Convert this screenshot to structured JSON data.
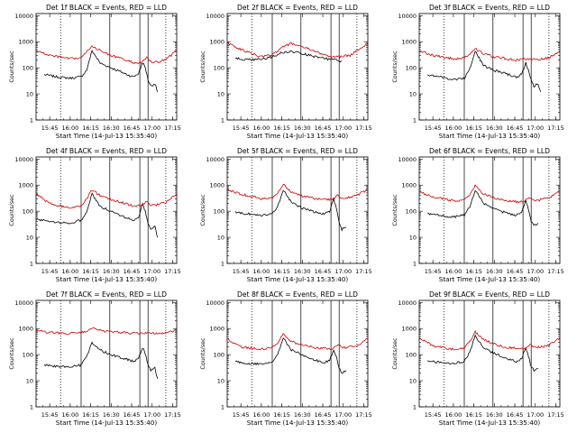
{
  "chart_data": [
    {
      "type": "line",
      "title": "Det 1f BLACK = Events, RED = LLD",
      "xlabel": "Start Time (14-Jul-13 15:35:40)",
      "ylabel": "Counts/sec",
      "yscale": "log",
      "ylim": [
        1,
        12000
      ],
      "xlim": [
        "15:35",
        "17:18"
      ],
      "x_ticks": [
        "15:45",
        "16:00",
        "16:15",
        "16:30",
        "16:45",
        "17:00",
        "17:15"
      ],
      "y_ticks": [
        "1",
        "10",
        "100",
        "1000",
        "10000"
      ],
      "dotted_markers": [
        "15:53",
        "17:10"
      ],
      "solid_markers": [
        "16:08",
        "16:29",
        "16:51",
        "16:57"
      ],
      "series": [
        {
          "color": "#000000",
          "x": [
            "15:41",
            "15:50",
            "16:00",
            "16:08",
            "16:12",
            "16:16",
            "16:22",
            "16:30",
            "16:40",
            "16:46",
            "16:50",
            "16:53",
            "16:55",
            "16:57",
            "16:59",
            "17:02",
            "17:04"
          ],
          "y": [
            55,
            45,
            40,
            45,
            80,
            450,
            150,
            100,
            60,
            45,
            60,
            160,
            100,
            35,
            20,
            25,
            12
          ]
        },
        {
          "color": "#cc0000",
          "x": [
            "15:35",
            "15:45",
            "16:00",
            "16:08",
            "16:12",
            "16:16",
            "16:22",
            "16:30",
            "16:40",
            "16:46",
            "16:52",
            "16:56",
            "17:00",
            "17:10",
            "17:18"
          ],
          "y": [
            450,
            300,
            220,
            240,
            400,
            700,
            450,
            300,
            200,
            160,
            150,
            250,
            150,
            200,
            450
          ]
        }
      ]
    },
    {
      "type": "line",
      "title": "Det 2f BLACK = Events, RED = LLD",
      "xlabel": "Start Time (14-Jul-13 15:35:40)",
      "ylabel": "Counts/sec",
      "yscale": "log",
      "ylim": [
        1,
        12000
      ],
      "xlim": [
        "15:35",
        "17:18"
      ],
      "x_ticks": [
        "15:45",
        "16:00",
        "16:15",
        "16:30",
        "16:45",
        "17:00",
        "17:15"
      ],
      "y_ticks": [
        "1",
        "10",
        "100",
        "1000",
        "10000"
      ],
      "dotted_markers": [
        "15:53",
        "17:10"
      ],
      "solid_markers": [
        "16:08",
        "16:29",
        "16:51",
        "16:57"
      ],
      "series": [
        {
          "color": "#000000",
          "x": [
            "15:41",
            "15:50",
            "16:00",
            "16:08",
            "16:15",
            "16:22",
            "16:30",
            "16:40",
            "16:50",
            "16:55",
            "16:57",
            "16:59"
          ],
          "y": [
            230,
            200,
            210,
            260,
            380,
            420,
            350,
            260,
            210,
            200,
            170,
            180
          ]
        },
        {
          "color": "#cc0000",
          "x": [
            "15:35",
            "15:45",
            "16:00",
            "16:08",
            "16:15",
            "16:22",
            "16:30",
            "16:40",
            "16:50",
            "16:56",
            "17:05",
            "17:18"
          ],
          "y": [
            900,
            500,
            260,
            320,
            600,
            850,
            650,
            400,
            280,
            260,
            300,
            900
          ]
        }
      ]
    },
    {
      "type": "line",
      "title": "Det 3f BLACK = Events, RED = LLD",
      "xlabel": "Start Time (14-Jul-13 15:35:40)",
      "ylabel": "Counts/sec",
      "yscale": "log",
      "ylim": [
        1,
        12000
      ],
      "xlim": [
        "15:35",
        "17:18"
      ],
      "x_ticks": [
        "15:45",
        "16:00",
        "16:15",
        "16:30",
        "16:45",
        "17:00",
        "17:15"
      ],
      "y_ticks": [
        "1",
        "10",
        "100",
        "1000",
        "10000"
      ],
      "dotted_markers": [
        "15:53",
        "17:10"
      ],
      "solid_markers": [
        "16:08",
        "16:29",
        "16:51",
        "16:57"
      ],
      "series": [
        {
          "color": "#000000",
          "x": [
            "15:41",
            "15:50",
            "16:00",
            "16:08",
            "16:12",
            "16:16",
            "16:22",
            "16:30",
            "16:40",
            "16:46",
            "16:50",
            "16:53",
            "16:55",
            "16:57",
            "16:59",
            "17:02",
            "17:04"
          ],
          "y": [
            55,
            45,
            35,
            40,
            90,
            450,
            120,
            80,
            55,
            45,
            55,
            150,
            80,
            35,
            20,
            25,
            12
          ]
        },
        {
          "color": "#cc0000",
          "x": [
            "15:35",
            "15:45",
            "16:00",
            "16:08",
            "16:12",
            "16:16",
            "16:22",
            "16:30",
            "16:40",
            "16:46",
            "16:52",
            "16:56",
            "17:00",
            "17:10",
            "17:18"
          ],
          "y": [
            450,
            300,
            220,
            240,
            330,
            550,
            350,
            260,
            220,
            200,
            210,
            230,
            200,
            240,
            450
          ]
        }
      ]
    },
    {
      "type": "line",
      "title": "Det 4f BLACK = Events, RED = LLD",
      "xlabel": "Start Time (14-Jul-13 15:35:40)",
      "ylabel": "Counts/sec",
      "yscale": "log",
      "ylim": [
        1,
        12000
      ],
      "xlim": [
        "15:35",
        "17:18"
      ],
      "x_ticks": [
        "15:45",
        "16:00",
        "16:15",
        "16:30",
        "16:45",
        "17:00",
        "17:15"
      ],
      "y_ticks": [
        "1",
        "10",
        "100",
        "1000",
        "10000"
      ],
      "dotted_markers": [
        "15:53",
        "17:10"
      ],
      "solid_markers": [
        "16:08",
        "16:29",
        "16:51",
        "16:57"
      ],
      "series": [
        {
          "color": "#000000",
          "x": [
            "15:35",
            "15:45",
            "16:00",
            "16:08",
            "16:12",
            "16:16",
            "16:22",
            "16:30",
            "16:40",
            "16:46",
            "16:50",
            "16:53",
            "16:55",
            "16:57",
            "16:59",
            "17:02",
            "17:04"
          ],
          "y": [
            50,
            40,
            35,
            45,
            90,
            450,
            150,
            100,
            60,
            45,
            60,
            180,
            100,
            35,
            20,
            25,
            10
          ]
        },
        {
          "color": "#cc0000",
          "x": [
            "15:35",
            "15:45",
            "16:00",
            "16:08",
            "16:12",
            "16:16",
            "16:22",
            "16:30",
            "16:40",
            "16:46",
            "16:52",
            "16:56",
            "17:00",
            "17:10",
            "17:18"
          ],
          "y": [
            450,
            200,
            130,
            160,
            300,
            650,
            400,
            280,
            200,
            160,
            160,
            230,
            160,
            220,
            450
          ]
        }
      ]
    },
    {
      "type": "line",
      "title": "Det 5f BLACK = Events, RED = LLD",
      "xlabel": "Start Time (14-Jul-13 15:35:40)",
      "ylabel": "Counts/sec",
      "yscale": "log",
      "ylim": [
        1,
        12000
      ],
      "xlim": [
        "15:35",
        "17:18"
      ],
      "x_ticks": [
        "15:45",
        "16:00",
        "16:15",
        "16:30",
        "16:45",
        "17:00",
        "17:15"
      ],
      "y_ticks": [
        "1",
        "10",
        "100",
        "1000",
        "10000"
      ],
      "dotted_markers": [
        "15:53",
        "17:10"
      ],
      "solid_markers": [
        "16:08",
        "16:29",
        "16:51",
        "16:57"
      ],
      "series": [
        {
          "color": "#000000",
          "x": [
            "15:41",
            "15:50",
            "16:00",
            "16:08",
            "16:12",
            "16:16",
            "16:22",
            "16:30",
            "16:40",
            "16:46",
            "16:50",
            "16:53",
            "16:55",
            "16:57",
            "16:59",
            "17:02"
          ],
          "y": [
            90,
            80,
            70,
            80,
            150,
            650,
            220,
            130,
            90,
            80,
            100,
            300,
            120,
            40,
            20,
            25
          ]
        },
        {
          "color": "#cc0000",
          "x": [
            "15:35",
            "15:45",
            "16:00",
            "16:08",
            "16:12",
            "16:16",
            "16:22",
            "16:30",
            "16:40",
            "16:46",
            "16:52",
            "16:56",
            "17:00",
            "17:10",
            "17:18"
          ],
          "y": [
            700,
            450,
            300,
            320,
            500,
            1100,
            550,
            380,
            300,
            280,
            280,
            420,
            300,
            400,
            700
          ]
        }
      ]
    },
    {
      "type": "line",
      "title": "Det 6f BLACK = Events, RED = LLD",
      "xlabel": "Start Time (14-Jul-13 15:35:40)",
      "ylabel": "Counts/sec",
      "yscale": "log",
      "ylim": [
        1,
        12000
      ],
      "xlim": [
        "15:35",
        "17:18"
      ],
      "x_ticks": [
        "15:45",
        "16:00",
        "16:15",
        "16:30",
        "16:45",
        "17:00",
        "17:15"
      ],
      "y_ticks": [
        "1",
        "10",
        "100",
        "1000",
        "10000"
      ],
      "dotted_markers": [
        "15:53",
        "17:10"
      ],
      "solid_markers": [
        "16:08",
        "16:29",
        "16:51",
        "16:57"
      ],
      "series": [
        {
          "color": "#000000",
          "x": [
            "15:41",
            "15:50",
            "16:00",
            "16:08",
            "16:12",
            "16:16",
            "16:22",
            "16:30",
            "16:40",
            "16:46",
            "16:50",
            "16:53",
            "16:55",
            "16:57",
            "16:59",
            "17:02"
          ],
          "y": [
            80,
            70,
            60,
            70,
            140,
            650,
            200,
            120,
            80,
            70,
            90,
            250,
            110,
            40,
            30,
            35
          ]
        },
        {
          "color": "#cc0000",
          "x": [
            "15:35",
            "15:45",
            "16:00",
            "16:08",
            "16:12",
            "16:16",
            "16:22",
            "16:30",
            "16:40",
            "16:46",
            "16:52",
            "16:56",
            "17:00",
            "17:10",
            "17:18"
          ],
          "y": [
            550,
            350,
            250,
            270,
            420,
            950,
            450,
            320,
            250,
            230,
            230,
            350,
            250,
            320,
            600
          ]
        }
      ]
    },
    {
      "type": "line",
      "title": "Det 7f BLACK = Events, RED = LLD",
      "xlabel": "Start Time (14-Jul-13 15:35:40)",
      "ylabel": "Counts/sec",
      "yscale": "log",
      "ylim": [
        1,
        12000
      ],
      "xlim": [
        "15:35",
        "17:18"
      ],
      "x_ticks": [
        "15:45",
        "16:00",
        "16:15",
        "16:30",
        "16:45",
        "17:00",
        "17:15"
      ],
      "y_ticks": [
        "1",
        "10",
        "100",
        "1000",
        "10000"
      ],
      "dotted_markers": [
        "15:53",
        "17:10"
      ],
      "solid_markers": [
        "16:08",
        "16:29",
        "16:51",
        "16:57"
      ],
      "series": [
        {
          "color": "#000000",
          "x": [
            "15:41",
            "15:50",
            "16:00",
            "16:08",
            "16:12",
            "16:16",
            "16:22",
            "16:30",
            "16:40",
            "16:46",
            "16:50",
            "16:53",
            "16:55",
            "16:57",
            "16:59",
            "17:02",
            "17:04"
          ],
          "y": [
            40,
            35,
            35,
            40,
            80,
            300,
            150,
            100,
            70,
            55,
            70,
            180,
            110,
            40,
            25,
            30,
            12
          ]
        },
        {
          "color": "#cc0000",
          "x": [
            "15:35",
            "15:45",
            "16:00",
            "16:08",
            "16:12",
            "16:16",
            "16:22",
            "16:30",
            "16:40",
            "16:46",
            "16:52",
            "16:56",
            "17:00",
            "17:10",
            "17:18"
          ],
          "y": [
            850,
            700,
            650,
            700,
            800,
            1100,
            850,
            750,
            700,
            650,
            650,
            700,
            650,
            700,
            850
          ]
        }
      ]
    },
    {
      "type": "line",
      "title": "Det 8f BLACK = Events, RED = LLD",
      "xlabel": "Start Time (14-Jul-13 15:35:40)",
      "ylabel": "Counts/sec",
      "yscale": "log",
      "ylim": [
        1,
        12000
      ],
      "xlim": [
        "15:35",
        "17:18"
      ],
      "x_ticks": [
        "15:45",
        "16:00",
        "16:15",
        "16:30",
        "16:45",
        "17:00",
        "17:15"
      ],
      "y_ticks": [
        "1",
        "10",
        "100",
        "1000",
        "10000"
      ],
      "dotted_markers": [
        "15:53",
        "17:10"
      ],
      "solid_markers": [
        "16:08",
        "16:29",
        "16:51",
        "16:57"
      ],
      "series": [
        {
          "color": "#000000",
          "x": [
            "15:41",
            "15:50",
            "16:00",
            "16:08",
            "16:12",
            "16:16",
            "16:22",
            "16:30",
            "16:40",
            "16:46",
            "16:50",
            "16:53",
            "16:55",
            "16:57",
            "16:59",
            "17:02"
          ],
          "y": [
            55,
            45,
            45,
            50,
            100,
            450,
            150,
            100,
            60,
            50,
            60,
            160,
            80,
            30,
            20,
            25
          ]
        },
        {
          "color": "#cc0000",
          "x": [
            "15:35",
            "15:45",
            "16:00",
            "16:08",
            "16:12",
            "16:16",
            "16:22",
            "16:30",
            "16:40",
            "16:46",
            "16:52",
            "16:56",
            "17:00",
            "17:10",
            "17:18"
          ],
          "y": [
            400,
            200,
            160,
            180,
            300,
            600,
            320,
            230,
            180,
            170,
            170,
            250,
            180,
            220,
            400
          ]
        }
      ]
    },
    {
      "type": "line",
      "title": "Det 9f BLACK = Events, RED = LLD",
      "xlabel": "Start Time (14-Jul-13 15:35:40)",
      "ylabel": "Counts/sec",
      "yscale": "log",
      "ylim": [
        1,
        12000
      ],
      "xlim": [
        "15:35",
        "17:18"
      ],
      "x_ticks": [
        "15:45",
        "16:00",
        "16:15",
        "16:30",
        "16:45",
        "17:00",
        "17:15"
      ],
      "y_ticks": [
        "1",
        "10",
        "100",
        "1000",
        "10000"
      ],
      "dotted_markers": [
        "15:53",
        "17:10"
      ],
      "solid_markers": [
        "16:08",
        "16:29",
        "16:51",
        "16:57"
      ],
      "series": [
        {
          "color": "#000000",
          "x": [
            "15:41",
            "15:50",
            "16:00",
            "16:08",
            "16:12",
            "16:16",
            "16:22",
            "16:30",
            "16:40",
            "16:46",
            "16:50",
            "16:53",
            "16:55",
            "16:57",
            "16:59",
            "17:02"
          ],
          "y": [
            60,
            50,
            45,
            55,
            120,
            550,
            180,
            110,
            70,
            55,
            70,
            200,
            90,
            35,
            25,
            30
          ]
        },
        {
          "color": "#cc0000",
          "x": [
            "15:35",
            "15:45",
            "16:00",
            "16:08",
            "16:12",
            "16:16",
            "16:22",
            "16:30",
            "16:40",
            "16:46",
            "16:52",
            "16:56",
            "17:00",
            "17:10",
            "17:18"
          ],
          "y": [
            450,
            220,
            160,
            180,
            320,
            750,
            380,
            250,
            190,
            170,
            170,
            260,
            180,
            230,
            450
          ]
        }
      ]
    }
  ]
}
